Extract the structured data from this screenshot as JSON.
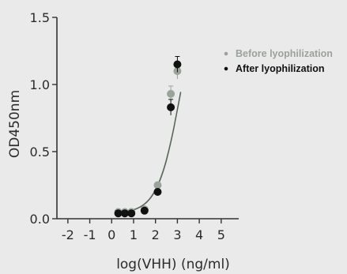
{
  "chart_data": {
    "type": "scatter",
    "xlabel": "log(VHH) (ng/ml)",
    "ylabel": "OD450nm",
    "xlim": [
      -2.5,
      5.8
    ],
    "ylim": [
      0,
      1.5
    ],
    "x_ticks": [
      "-2",
      "-1",
      "0",
      "1",
      "2",
      "3",
      "4",
      "5"
    ],
    "y_ticks": [
      "0.0",
      "0.5",
      "1.0",
      "1.5"
    ],
    "grid": false,
    "legend_position": "top-right",
    "series": [
      {
        "name": "Before lyophilization",
        "color": "#9aa39a",
        "x": [
          0.3,
          0.6,
          0.9,
          1.5,
          2.1,
          2.7,
          3.0
        ],
        "y": [
          0.05,
          0.05,
          0.05,
          0.07,
          0.25,
          0.93,
          1.1
        ]
      },
      {
        "name": "After lyophilization",
        "color": "#111111",
        "x": [
          0.3,
          0.6,
          0.9,
          1.5,
          2.1,
          2.7,
          3.0
        ],
        "y": [
          0.04,
          0.04,
          0.04,
          0.06,
          0.2,
          0.83,
          1.15
        ]
      }
    ]
  }
}
